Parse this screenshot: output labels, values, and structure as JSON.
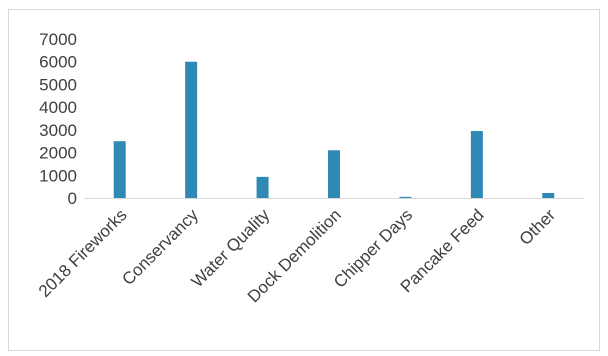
{
  "chart_data": {
    "type": "bar",
    "title": "",
    "xlabel": "",
    "ylabel": "",
    "categories": [
      "2018 Fireworks",
      "Conservancy",
      "Water Quality",
      "Dock Demolition",
      "Chipper Days",
      "Pancake Feed",
      "Other"
    ],
    "values": [
      2500,
      6000,
      930,
      2100,
      50,
      2950,
      220
    ],
    "ylim": [
      0,
      7000
    ],
    "yticks": [
      "0",
      "1000",
      "2000",
      "3000",
      "4000",
      "5000",
      "6000",
      "7000"
    ],
    "grid": false,
    "legend": "none",
    "bar_color": "#2e8ab5",
    "axis_color": "#d9d9d9"
  }
}
